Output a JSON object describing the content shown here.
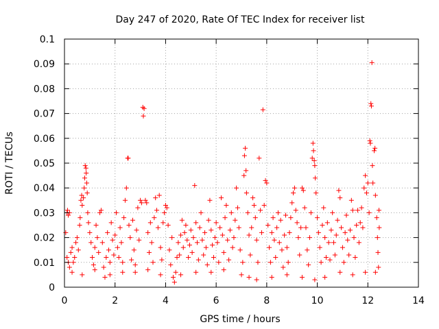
{
  "chart_data": {
    "type": "scatter",
    "title": "Day 247 of 2020, Rate Of TEC Index for receiver list",
    "xlabel": "GPS time / hours",
    "ylabel": "ROTI / TECUs",
    "xlim": [
      0,
      14
    ],
    "ylim": [
      0,
      0.1
    ],
    "xticks": [
      "0",
      "2",
      "4",
      "6",
      "8",
      "10",
      "12",
      "14"
    ],
    "yticks": [
      "0",
      "0.01",
      "0.02",
      "0.03",
      "0.04",
      "0.05",
      "0.06",
      "0.07",
      "0.08",
      "0.09",
      "0.1"
    ],
    "grid": true,
    "marker": "plus",
    "color": "#ff0000",
    "series": [
      {
        "points": [
          [
            0.1,
            0.03
          ],
          [
            0.12,
            0.031
          ],
          [
            0.15,
            0.029
          ],
          [
            0.2,
            0.03
          ],
          [
            0.05,
            0.022
          ],
          [
            0.1,
            0.012
          ],
          [
            0.15,
            0.01
          ],
          [
            0.2,
            0.008
          ],
          [
            0.25,
            0.014
          ],
          [
            0.3,
            0.016
          ],
          [
            0.35,
            0.01
          ],
          [
            0.4,
            0.012
          ],
          [
            0.45,
            0.018
          ],
          [
            0.5,
            0.02
          ],
          [
            0.55,
            0.015
          ],
          [
            0.6,
            0.025
          ],
          [
            0.62,
            0.028
          ],
          [
            0.65,
            0.035
          ],
          [
            0.68,
            0.037
          ],
          [
            0.7,
            0.033
          ],
          [
            0.75,
            0.036
          ],
          [
            0.78,
            0.04
          ],
          [
            0.8,
            0.044
          ],
          [
            0.82,
            0.049
          ],
          [
            0.85,
            0.048
          ],
          [
            0.86,
            0.046
          ],
          [
            0.88,
            0.042
          ],
          [
            0.9,
            0.038
          ],
          [
            0.92,
            0.03
          ],
          [
            0.95,
            0.026
          ],
          [
            1.0,
            0.022
          ],
          [
            1.05,
            0.018
          ],
          [
            1.1,
            0.012
          ],
          [
            1.15,
            0.009
          ],
          [
            1.2,
            0.016
          ],
          [
            1.25,
            0.025
          ],
          [
            1.3,
            0.02
          ],
          [
            1.35,
            0.014
          ],
          [
            1.4,
            0.03
          ],
          [
            1.45,
            0.031
          ],
          [
            1.5,
            0.018
          ],
          [
            1.55,
            0.008
          ],
          [
            1.6,
            0.004
          ],
          [
            1.65,
            0.012
          ],
          [
            1.7,
            0.022
          ],
          [
            1.75,
            0.015
          ],
          [
            1.8,
            0.01
          ],
          [
            1.85,
            0.026
          ],
          [
            1.9,
            0.019
          ],
          [
            1.95,
            0.013
          ],
          [
            2.0,
            0.021
          ],
          [
            2.05,
            0.03
          ],
          [
            2.1,
            0.016
          ],
          [
            2.15,
            0.012
          ],
          [
            2.2,
            0.024
          ],
          [
            2.25,
            0.018
          ],
          [
            2.3,
            0.01
          ],
          [
            2.35,
            0.028
          ],
          [
            2.4,
            0.035
          ],
          [
            2.45,
            0.04
          ],
          [
            2.5,
            0.052
          ],
          [
            2.52,
            0.052
          ],
          [
            2.55,
            0.025
          ],
          [
            2.6,
            0.02
          ],
          [
            2.65,
            0.011
          ],
          [
            2.7,
            0.027
          ],
          [
            2.75,
            0.015
          ],
          [
            2.8,
            0.009
          ],
          [
            2.85,
            0.023
          ],
          [
            2.9,
            0.032
          ],
          [
            2.95,
            0.019
          ],
          [
            3.0,
            0.035
          ],
          [
            3.05,
            0.034
          ],
          [
            3.1,
            0.0725
          ],
          [
            3.15,
            0.072
          ],
          [
            3.12,
            0.069
          ],
          [
            3.2,
            0.035
          ],
          [
            3.25,
            0.034
          ],
          [
            3.3,
            0.022
          ],
          [
            3.35,
            0.014
          ],
          [
            3.4,
            0.026
          ],
          [
            3.45,
            0.018
          ],
          [
            3.5,
            0.01
          ],
          [
            3.55,
            0.028
          ],
          [
            3.6,
            0.036
          ],
          [
            3.65,
            0.031
          ],
          [
            3.7,
            0.024
          ],
          [
            3.75,
            0.037
          ],
          [
            3.8,
            0.016
          ],
          [
            3.85,
            0.011
          ],
          [
            3.9,
            0.026
          ],
          [
            3.95,
            0.03
          ],
          [
            4.0,
            0.033
          ],
          [
            4.05,
            0.032
          ],
          [
            4.1,
            0.025
          ],
          [
            4.15,
            0.015
          ],
          [
            4.2,
            0.009
          ],
          [
            4.25,
            0.02
          ],
          [
            4.3,
            0.004
          ],
          [
            4.35,
            0.002
          ],
          [
            4.4,
            0.006
          ],
          [
            4.45,
            0.012
          ],
          [
            4.5,
            0.018
          ],
          [
            4.55,
            0.013
          ],
          [
            4.6,
            0.021
          ],
          [
            4.65,
            0.027
          ],
          [
            4.7,
            0.016
          ],
          [
            4.75,
            0.022
          ],
          [
            4.8,
            0.025
          ],
          [
            4.85,
            0.019
          ],
          [
            4.9,
            0.012
          ],
          [
            4.95,
            0.017
          ],
          [
            5.0,
            0.023
          ],
          [
            5.05,
            0.014
          ],
          [
            5.1,
            0.02
          ],
          [
            5.15,
            0.041
          ],
          [
            5.2,
            0.026
          ],
          [
            5.25,
            0.018
          ],
          [
            5.3,
            0.011
          ],
          [
            5.35,
            0.024
          ],
          [
            5.4,
            0.03
          ],
          [
            5.45,
            0.019
          ],
          [
            5.5,
            0.013
          ],
          [
            5.55,
            0.022
          ],
          [
            5.6,
            0.016
          ],
          [
            5.65,
            0.009
          ],
          [
            5.7,
            0.027
          ],
          [
            5.75,
            0.035
          ],
          [
            5.8,
            0.023
          ],
          [
            5.85,
            0.017
          ],
          [
            5.9,
            0.012
          ],
          [
            5.95,
            0.02
          ],
          [
            6.0,
            0.026
          ],
          [
            6.05,
            0.018
          ],
          [
            6.1,
            0.01
          ],
          [
            6.15,
            0.024
          ],
          [
            6.2,
            0.036
          ],
          [
            6.25,
            0.021
          ],
          [
            6.3,
            0.014
          ],
          [
            6.35,
            0.028
          ],
          [
            6.4,
            0.033
          ],
          [
            6.45,
            0.019
          ],
          [
            6.5,
            0.011
          ],
          [
            6.55,
            0.023
          ],
          [
            6.6,
            0.03
          ],
          [
            6.65,
            0.016
          ],
          [
            6.7,
            0.02
          ],
          [
            6.75,
            0.027
          ],
          [
            6.8,
            0.04
          ],
          [
            6.85,
            0.032
          ],
          [
            6.9,
            0.024
          ],
          [
            6.95,
            0.015
          ],
          [
            7.0,
            0.005
          ],
          [
            7.05,
            0.01
          ],
          [
            7.1,
            0.045
          ],
          [
            7.12,
            0.053
          ],
          [
            7.15,
            0.056
          ],
          [
            7.18,
            0.047
          ],
          [
            7.2,
            0.038
          ],
          [
            7.25,
            0.03
          ],
          [
            7.3,
            0.021
          ],
          [
            7.35,
            0.013
          ],
          [
            7.4,
            0.024
          ],
          [
            7.45,
            0.036
          ],
          [
            7.5,
            0.033
          ],
          [
            7.55,
            0.028
          ],
          [
            7.6,
            0.019
          ],
          [
            7.65,
            0.01
          ],
          [
            7.7,
            0.052
          ],
          [
            7.75,
            0.031
          ],
          [
            7.8,
            0.022
          ],
          [
            7.85,
            0.0715
          ],
          [
            7.9,
            0.033
          ],
          [
            7.95,
            0.043
          ],
          [
            8.0,
            0.042
          ],
          [
            8.05,
            0.025
          ],
          [
            8.1,
            0.016
          ],
          [
            8.15,
            0.01
          ],
          [
            8.2,
            0.022
          ],
          [
            8.25,
            0.028
          ],
          [
            8.3,
            0.019
          ],
          [
            8.35,
            0.012
          ],
          [
            8.4,
            0.024
          ],
          [
            8.45,
            0.03
          ],
          [
            8.5,
            0.018
          ],
          [
            8.55,
            0.027
          ],
          [
            8.6,
            0.015
          ],
          [
            8.65,
            0.008
          ],
          [
            8.7,
            0.021
          ],
          [
            8.75,
            0.029
          ],
          [
            8.8,
            0.016
          ],
          [
            8.85,
            0.01
          ],
          [
            8.9,
            0.022
          ],
          [
            8.95,
            0.028
          ],
          [
            9.0,
            0.034
          ],
          [
            9.05,
            0.038
          ],
          [
            9.1,
            0.04
          ],
          [
            9.15,
            0.031
          ],
          [
            9.2,
            0.026
          ],
          [
            9.25,
            0.02
          ],
          [
            9.3,
            0.013
          ],
          [
            9.35,
            0.024
          ],
          [
            9.4,
            0.04
          ],
          [
            9.45,
            0.039
          ],
          [
            9.5,
            0.032
          ],
          [
            9.55,
            0.024
          ],
          [
            9.6,
            0.015
          ],
          [
            9.65,
            0.009
          ],
          [
            9.7,
            0.02
          ],
          [
            9.75,
            0.03
          ],
          [
            9.8,
            0.052
          ],
          [
            9.83,
            0.058
          ],
          [
            9.85,
            0.055
          ],
          [
            9.88,
            0.051
          ],
          [
            9.9,
            0.049
          ],
          [
            9.92,
            0.044
          ],
          [
            9.95,
            0.038
          ],
          [
            10.0,
            0.028
          ],
          [
            10.05,
            0.022
          ],
          [
            10.1,
            0.016
          ],
          [
            10.15,
            0.01
          ],
          [
            10.2,
            0.025
          ],
          [
            10.25,
            0.032
          ],
          [
            10.3,
            0.02
          ],
          [
            10.35,
            0.012
          ],
          [
            10.4,
            0.026
          ],
          [
            10.45,
            0.018
          ],
          [
            10.5,
            0.011
          ],
          [
            10.55,
            0.023
          ],
          [
            10.6,
            0.03
          ],
          [
            10.65,
            0.018
          ],
          [
            10.7,
            0.013
          ],
          [
            10.75,
            0.021
          ],
          [
            10.8,
            0.027
          ],
          [
            10.85,
            0.039
          ],
          [
            10.9,
            0.036
          ],
          [
            10.95,
            0.024
          ],
          [
            11.0,
            0.016
          ],
          [
            11.05,
            0.01
          ],
          [
            11.1,
            0.022
          ],
          [
            11.15,
            0.029
          ],
          [
            11.2,
            0.019
          ],
          [
            11.25,
            0.013
          ],
          [
            11.3,
            0.023
          ],
          [
            11.35,
            0.035
          ],
          [
            11.4,
            0.031
          ],
          [
            11.45,
            0.02
          ],
          [
            11.5,
            0.012
          ],
          [
            11.55,
            0.025
          ],
          [
            11.6,
            0.031
          ],
          [
            11.65,
            0.018
          ],
          [
            11.7,
            0.026
          ],
          [
            11.75,
            0.032
          ],
          [
            11.8,
            0.024
          ],
          [
            11.85,
            0.04
          ],
          [
            11.9,
            0.045
          ],
          [
            11.95,
            0.038
          ],
          [
            12.0,
            0.042
          ],
          [
            12.05,
            0.03
          ],
          [
            12.08,
            0.059
          ],
          [
            12.1,
            0.058
          ],
          [
            12.12,
            0.074
          ],
          [
            12.14,
            0.073
          ],
          [
            12.16,
            0.0905
          ],
          [
            12.18,
            0.049
          ],
          [
            12.2,
            0.042
          ],
          [
            12.25,
            0.055
          ],
          [
            12.28,
            0.056
          ],
          [
            12.3,
            0.037
          ],
          [
            12.35,
            0.028
          ],
          [
            12.38,
            0.02
          ],
          [
            12.4,
            0.014
          ],
          [
            12.42,
            0.008
          ],
          [
            12.44,
            0.031
          ],
          [
            12.45,
            0.024
          ],
          [
            0.3,
            0.006
          ],
          [
            0.7,
            0.005
          ],
          [
            1.2,
            0.007
          ],
          [
            1.8,
            0.005
          ],
          [
            2.3,
            0.006
          ],
          [
            2.8,
            0.006
          ],
          [
            3.3,
            0.007
          ],
          [
            3.8,
            0.005
          ],
          [
            4.6,
            0.005
          ],
          [
            5.2,
            0.006
          ],
          [
            5.8,
            0.006
          ],
          [
            6.3,
            0.007
          ],
          [
            7.3,
            0.004
          ],
          [
            7.6,
            0.003
          ],
          [
            8.2,
            0.004
          ],
          [
            8.8,
            0.005
          ],
          [
            9.4,
            0.004
          ],
          [
            9.9,
            0.003
          ],
          [
            10.3,
            0.004
          ],
          [
            10.9,
            0.006
          ],
          [
            11.4,
            0.005
          ],
          [
            11.9,
            0.006
          ],
          [
            12.3,
            0.006
          ]
        ]
      }
    ]
  }
}
